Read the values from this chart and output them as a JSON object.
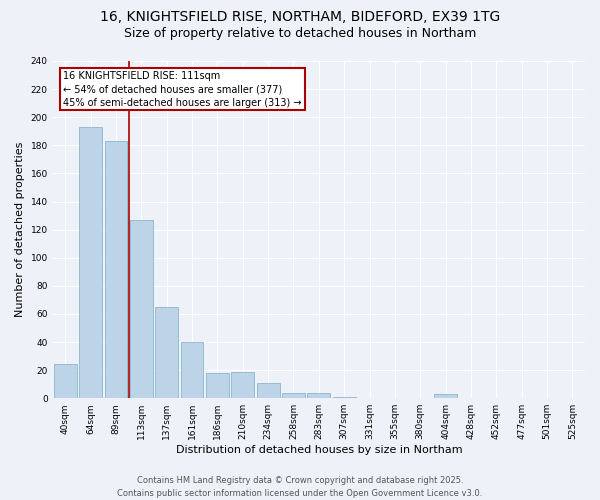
{
  "title_line1": "16, KNIGHTSFIELD RISE, NORTHAM, BIDEFORD, EX39 1TG",
  "title_line2": "Size of property relative to detached houses in Northam",
  "xlabel": "Distribution of detached houses by size in Northam",
  "ylabel": "Number of detached properties",
  "categories": [
    "40sqm",
    "64sqm",
    "89sqm",
    "113sqm",
    "137sqm",
    "161sqm",
    "186sqm",
    "210sqm",
    "234sqm",
    "258sqm",
    "283sqm",
    "307sqm",
    "331sqm",
    "355sqm",
    "380sqm",
    "404sqm",
    "428sqm",
    "452sqm",
    "477sqm",
    "501sqm",
    "525sqm"
  ],
  "values": [
    24,
    193,
    183,
    127,
    65,
    40,
    18,
    19,
    11,
    4,
    4,
    1,
    0,
    0,
    0,
    3,
    0,
    0,
    0,
    0,
    0
  ],
  "bar_color": "#bdd4e8",
  "bar_edge_color": "#7aafc8",
  "vline_x_index": 2.5,
  "vline_color": "#aa0000",
  "annotation_text": "16 KNIGHTSFIELD RISE: 111sqm\n← 54% of detached houses are smaller (377)\n45% of semi-detached houses are larger (313) →",
  "annotation_box_color": "#aa0000",
  "ylim": [
    0,
    240
  ],
  "yticks": [
    0,
    20,
    40,
    60,
    80,
    100,
    120,
    140,
    160,
    180,
    200,
    220,
    240
  ],
  "background_color": "#eef2f8",
  "grid_color": "#ffffff",
  "footer_text": "Contains HM Land Registry data © Crown copyright and database right 2025.\nContains public sector information licensed under the Open Government Licence v3.0.",
  "title_fontsize": 10,
  "subtitle_fontsize": 9,
  "tick_fontsize": 6.5,
  "ylabel_fontsize": 8,
  "xlabel_fontsize": 8,
  "footer_fontsize": 6,
  "annotation_fontsize": 7
}
